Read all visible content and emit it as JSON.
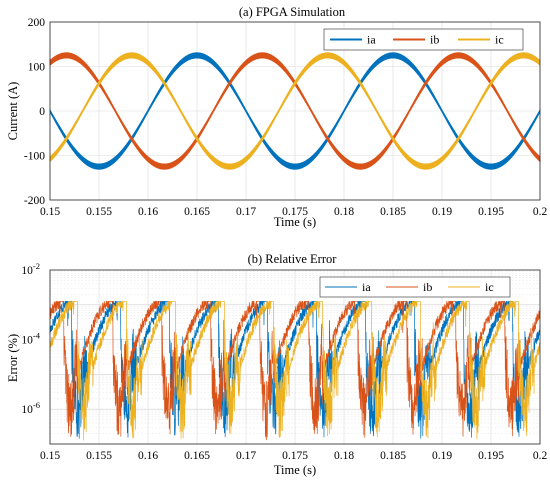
{
  "chart_data": [
    {
      "type": "line",
      "title": "(a) FPGA Simulation",
      "xlabel": "Time (s)",
      "ylabel": "Current (A)",
      "xlim": [
        0.15,
        0.2
      ],
      "ylim": [
        -200,
        200
      ],
      "xticks": [
        "0.15",
        "0.155",
        "0.16",
        "0.165",
        "0.17",
        "0.175",
        "0.18",
        "0.185",
        "0.19",
        "0.195",
        "0.2"
      ],
      "yticks": [
        "200",
        "100",
        "0",
        "-100",
        "-200"
      ],
      "grid": true,
      "legend": "top-right",
      "fundamental_hz": 50,
      "amplitude": 125,
      "ripple_amplitude": 6,
      "series": [
        {
          "name": "ia",
          "color": "#0072BD",
          "phase_deg": 0,
          "peak_time": 0.165
        },
        {
          "name": "ib",
          "color": "#D95319",
          "phase_deg": -120,
          "peak_time": 0.1717
        },
        {
          "name": "ic",
          "color": "#EDB120",
          "phase_deg": 120,
          "peak_time": 0.1583
        }
      ]
    },
    {
      "type": "line",
      "title": "(b) Relative Error",
      "xlabel": "Time (s)",
      "ylabel": "Error (%)",
      "xlim": [
        0.15,
        0.2
      ],
      "ylim": [
        1e-07,
        0.01
      ],
      "yscale": "log",
      "xticks": [
        "0.15",
        "0.155",
        "0.16",
        "0.165",
        "0.17",
        "0.175",
        "0.18",
        "0.185",
        "0.19",
        "0.195",
        "0.2"
      ],
      "yticks": [
        {
          "base": "10",
          "exp": "-2"
        },
        {
          "base": "10",
          "exp": "-4"
        },
        {
          "base": "10",
          "exp": "-6"
        }
      ],
      "grid": true,
      "legend": "top-right",
      "peak_error": 0.0012,
      "series": [
        {
          "name": "ia",
          "color": "#0072BD"
        },
        {
          "name": "ib",
          "color": "#D95319"
        },
        {
          "name": "ic",
          "color": "#EDB120"
        }
      ]
    }
  ]
}
